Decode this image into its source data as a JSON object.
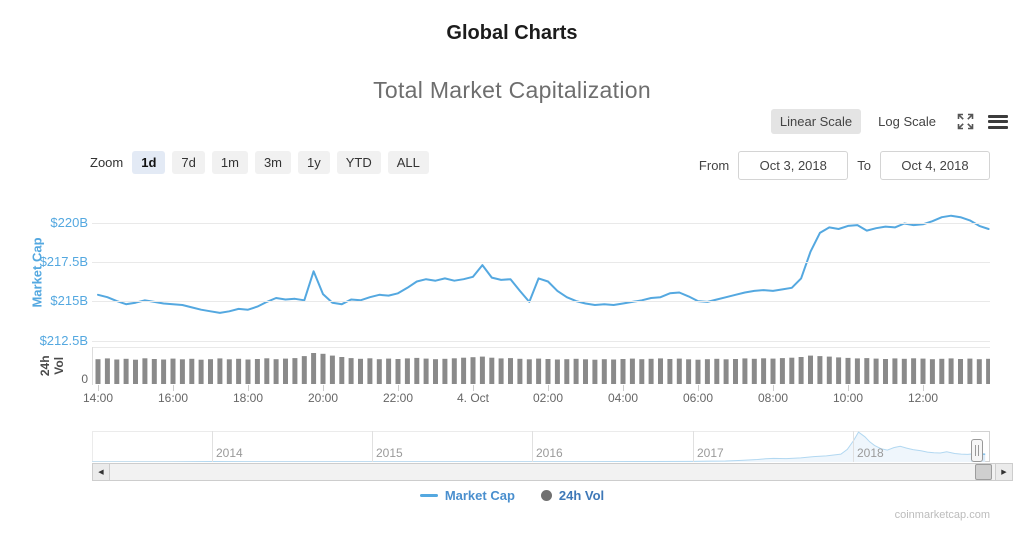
{
  "header": {
    "title": "Global Charts",
    "subtitle": "Total Market Capitalization"
  },
  "scale_toggle": {
    "linear": "Linear Scale",
    "log": "Log Scale",
    "active": "linear"
  },
  "zoom_controls": {
    "label": "Zoom",
    "buttons": [
      "1d",
      "7d",
      "1m",
      "3m",
      "1y",
      "YTD",
      "ALL"
    ],
    "active": "1d"
  },
  "range_selector": {
    "from_label": "From",
    "from_value": "Oct 3, 2018",
    "to_label": "To",
    "to_value": "Oct 4, 2018"
  },
  "colors": {
    "line_blue": "#54a8e0",
    "nav_area_fill": "#dcebf8",
    "volume_gray": "#8a8a8a",
    "axis_label_blue": "#54a8e0",
    "legend_marketcap_text": "#4a8fce",
    "legend_vol_text": "#3e78b8",
    "legend_vol_dot": "#707070"
  },
  "chart_data": [
    {
      "type": "line",
      "name": "Market Cap",
      "ylabel": "Market Cap",
      "y_unit": "USD billions",
      "start": "Oct 3, 2018 14:00",
      "interval_minutes": 15,
      "ylim": [
        212.25,
        221.5
      ],
      "grid": "horizontal",
      "yticks": [
        {
          "v": 220,
          "label": "$220B"
        },
        {
          "v": 217.5,
          "label": "$217.5B"
        },
        {
          "v": 215,
          "label": "$215B"
        },
        {
          "v": 212.5,
          "label": "$212.5B"
        }
      ],
      "xticks": [
        {
          "t": 0,
          "label": "14:00"
        },
        {
          "t": 2,
          "label": "16:00"
        },
        {
          "t": 4,
          "label": "18:00"
        },
        {
          "t": 6,
          "label": "20:00"
        },
        {
          "t": 8,
          "label": "22:00"
        },
        {
          "t": 10,
          "label": "4. Oct"
        },
        {
          "t": 12,
          "label": "02:00"
        },
        {
          "t": 14,
          "label": "04:00"
        },
        {
          "t": 16,
          "label": "06:00"
        },
        {
          "t": 18,
          "label": "08:00"
        },
        {
          "t": 20,
          "label": "10:00"
        },
        {
          "t": 22,
          "label": "12:00"
        }
      ],
      "values": [
        215.45,
        215.3,
        215.05,
        214.85,
        214.95,
        215.1,
        215.0,
        214.9,
        214.85,
        214.8,
        214.65,
        214.5,
        214.4,
        214.3,
        214.4,
        214.55,
        214.5,
        214.7,
        215.0,
        215.25,
        215.15,
        215.2,
        215.1,
        216.95,
        215.5,
        214.95,
        214.85,
        215.15,
        215.1,
        215.3,
        215.45,
        215.4,
        215.55,
        215.9,
        216.3,
        216.45,
        216.35,
        216.5,
        216.35,
        216.45,
        216.6,
        217.35,
        216.55,
        216.4,
        216.45,
        215.7,
        215.0,
        216.5,
        216.3,
        215.7,
        215.3,
        215.05,
        214.9,
        214.8,
        214.85,
        214.8,
        214.9,
        215.0,
        215.1,
        215.25,
        215.3,
        215.55,
        215.6,
        215.35,
        215.05,
        215.0,
        215.15,
        215.3,
        215.45,
        215.6,
        215.7,
        215.75,
        215.7,
        215.8,
        215.9,
        216.5,
        218.2,
        219.4,
        219.75,
        219.65,
        219.85,
        219.9,
        219.55,
        219.7,
        219.8,
        219.75,
        220.0,
        219.9,
        219.95,
        220.15,
        220.4,
        220.5,
        220.4,
        220.2,
        219.85,
        219.65
      ]
    },
    {
      "type": "bar",
      "name": "24h Vol",
      "ylabel": "24h Vol",
      "y_unit": "USD billions",
      "start": "Oct 3, 2018 14:00",
      "interval_minutes": 15,
      "ylim": [
        0,
        20
      ],
      "yticks": [
        {
          "v": 0,
          "label": "0"
        }
      ],
      "values": [
        13.8,
        14.2,
        13.6,
        14.0,
        13.5,
        14.3,
        13.9,
        13.6,
        14.1,
        13.7,
        14.0,
        13.5,
        13.8,
        14.2,
        13.7,
        14.0,
        13.6,
        13.9,
        14.3,
        13.8,
        14.1,
        14.4,
        15.5,
        17.2,
        16.8,
        15.8,
        15.0,
        14.4,
        14.0,
        14.3,
        13.8,
        14.1,
        13.9,
        14.2,
        14.5,
        14.1,
        13.8,
        14.0,
        14.3,
        14.6,
        14.9,
        15.2,
        14.6,
        14.2,
        14.4,
        14.0,
        13.7,
        14.1,
        13.9,
        13.6,
        13.8,
        14.0,
        13.7,
        13.5,
        13.8,
        13.6,
        13.9,
        14.1,
        13.8,
        14.0,
        14.2,
        13.9,
        14.1,
        13.7,
        13.5,
        13.8,
        14.0,
        13.7,
        13.9,
        14.2,
        14.0,
        14.3,
        14.1,
        14.4,
        14.6,
        15.0,
        15.8,
        15.5,
        15.2,
        14.8,
        14.5,
        14.2,
        14.4,
        14.1,
        13.9,
        14.2,
        14.0,
        14.3,
        14.1,
        13.8,
        14.0,
        14.2,
        13.9,
        14.1,
        13.8,
        14.0
      ]
    },
    {
      "type": "area",
      "name": "Total Market Cap history (navigator)",
      "y_unit": "USD billions",
      "xlim": [
        2013.25,
        2018.85
      ],
      "ylim": [
        0,
        860
      ],
      "xticks": [
        {
          "x": 2014,
          "label": "2014"
        },
        {
          "x": 2015,
          "label": "2015"
        },
        {
          "x": 2016,
          "label": "2016"
        },
        {
          "x": 2017,
          "label": "2017"
        },
        {
          "x": 2018,
          "label": "2018"
        }
      ],
      "x": [
        2013.25,
        2013.5,
        2013.75,
        2013.92,
        2014.0,
        2014.1,
        2014.25,
        2014.5,
        2014.75,
        2015.0,
        2015.17,
        2015.33,
        2015.5,
        2015.75,
        2016.0,
        2016.25,
        2016.5,
        2016.75,
        2017.0,
        2017.1,
        2017.2,
        2017.3,
        2017.4,
        2017.45,
        2017.5,
        2017.58,
        2017.67,
        2017.75,
        2017.83,
        2017.92,
        2017.96,
        2018.0,
        2018.03,
        2018.07,
        2018.1,
        2018.13,
        2018.17,
        2018.21,
        2018.25,
        2018.29,
        2018.33,
        2018.37,
        2018.42,
        2018.46,
        2018.5,
        2018.54,
        2018.58,
        2018.63,
        2018.67,
        2018.71,
        2018.75,
        2018.79,
        2018.82
      ],
      "values": [
        1.5,
        1.5,
        2.5,
        10,
        13,
        11,
        9,
        8,
        6,
        5.5,
        5,
        4.5,
        4.5,
        4.5,
        7,
        8,
        12,
        13,
        18,
        25,
        28,
        45,
        70,
        90,
        100,
        95,
        115,
        150,
        170,
        220,
        350,
        600,
        830,
        700,
        560,
        460,
        370,
        330,
        400,
        435,
        385,
        345,
        310,
        275,
        255,
        250,
        285,
        235,
        220,
        210,
        228,
        222,
        220
      ]
    }
  ],
  "legend": {
    "items": [
      {
        "label": "Market Cap",
        "type": "line"
      },
      {
        "label": "24h Vol",
        "type": "dot"
      }
    ]
  },
  "watermark": "coinmarketcap.com"
}
